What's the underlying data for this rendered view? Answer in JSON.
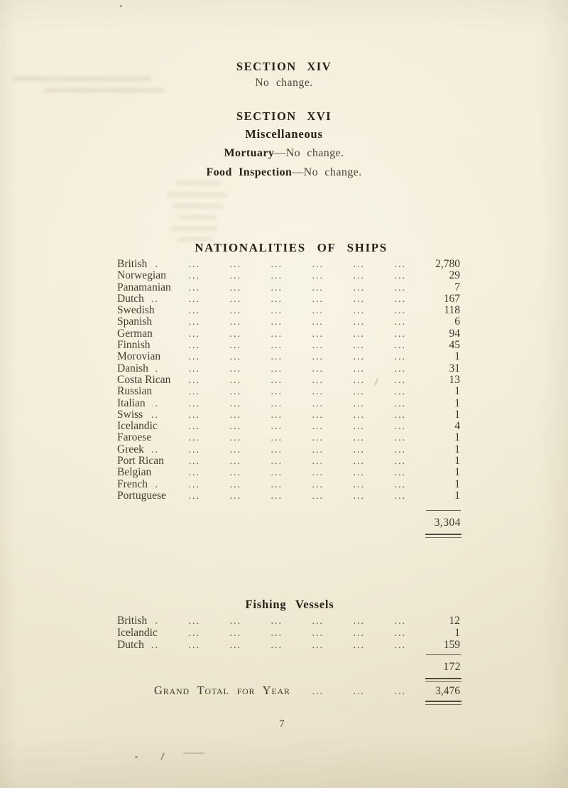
{
  "page": {
    "section_xiv": {
      "title": "SECTION XIV",
      "body": "No change."
    },
    "section_xvi": {
      "title": "SECTION XVI",
      "subtitle": "Miscellaneous",
      "entries": [
        {
          "label": "Mortuary",
          "rest": "—No change."
        },
        {
          "label": "Food Inspection",
          "rest": "—No change."
        }
      ]
    },
    "ships_table": {
      "title": "NATIONALITIES OF SHIPS",
      "rows": [
        [
          "British",
          "2,780"
        ],
        [
          "Norwegian",
          "29"
        ],
        [
          "Panamanian",
          "7"
        ],
        [
          "Dutch",
          "167"
        ],
        [
          "Swedish",
          "118"
        ],
        [
          "Spanish",
          "6"
        ],
        [
          "German",
          "94"
        ],
        [
          "Finnish",
          "45"
        ],
        [
          "Morovian",
          "1"
        ],
        [
          "Danish",
          "31"
        ],
        [
          "Costa Rican",
          "13"
        ],
        [
          "Russian",
          "1"
        ],
        [
          "Italian",
          "1"
        ],
        [
          "Swiss",
          "1"
        ],
        [
          "Icelandic",
          "4"
        ],
        [
          "Faroese",
          "1"
        ],
        [
          "Greek",
          "1"
        ],
        [
          "Port Rican",
          "1"
        ],
        [
          "Belgian",
          "1"
        ],
        [
          "French",
          "1"
        ],
        [
          "Portuguese",
          "1"
        ]
      ],
      "total": "3,304"
    },
    "fishing_table": {
      "title": "Fishing Vessels",
      "rows": [
        [
          "British",
          "12"
        ],
        [
          "Icelandic",
          "1"
        ],
        [
          "Dutch",
          "159"
        ]
      ],
      "total": "172"
    },
    "grand_total": {
      "label": "Grand Total for Year",
      "value": "3,476"
    },
    "page_number": "7"
  },
  "colors": {
    "paper": "#f1ead6",
    "ink": "#453e31",
    "ink_bold": "#261f15"
  }
}
